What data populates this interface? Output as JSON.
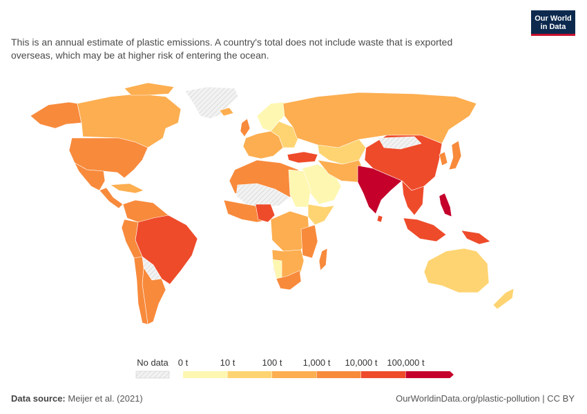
{
  "logo": {
    "line1": "Our World",
    "line2": "in Data"
  },
  "subtitle": "This is an annual estimate of plastic emissions. A country's total does not include waste that is exported overseas, which may be at higher risk of entering the ocean.",
  "legend": {
    "no_data_label": "No data",
    "tick_labels": [
      "0 t",
      "10 t",
      "100 t",
      "1,000 t",
      "10,000 t",
      "100,000 t"
    ],
    "bin_colors": [
      "#fef7b2",
      "#fed472",
      "#fdae50",
      "#f88a3c",
      "#ee4b2b",
      "#c4002b"
    ],
    "no_data_color": "#f2f2f2"
  },
  "footer": {
    "source_label": "Data source:",
    "source_value": "Meijer et al. (2021)",
    "url_license": "OurWorldinData.org/plastic-pollution | CC BY"
  }
}
